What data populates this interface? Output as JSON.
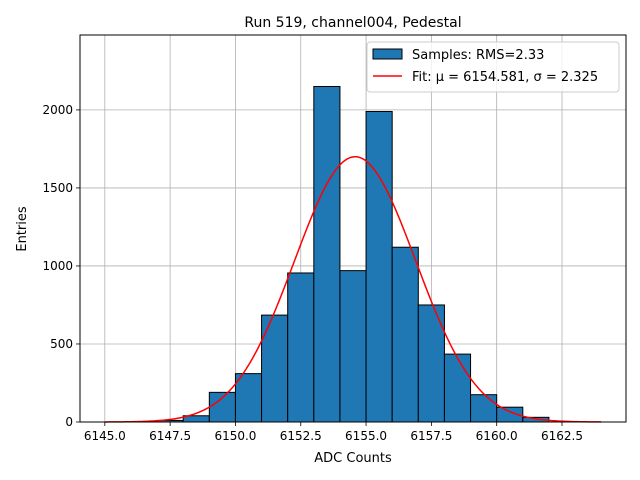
{
  "chart_data": {
    "type": "bar",
    "title": "Run 519, channel004, Pedestal",
    "xlabel": "ADC Counts",
    "ylabel": "Entries",
    "xlim": [
      6144.05,
      6164.95
    ],
    "ylim": [
      0,
      2480
    ],
    "xticks": [
      6145.0,
      6147.5,
      6150.0,
      6152.5,
      6155.0,
      6157.5,
      6160.0,
      6162.5
    ],
    "xtick_labels": [
      "6145.0",
      "6147.5",
      "6150.0",
      "6152.5",
      "6155.0",
      "6157.5",
      "6160.0",
      "6162.5"
    ],
    "yticks": [
      0,
      500,
      1000,
      1500,
      2000
    ],
    "ytick_labels": [
      "0",
      "500",
      "1000",
      "1500",
      "2000"
    ],
    "grid": true,
    "legend_position": "top-right",
    "histogram": {
      "name": "Samples: RMS=2.33",
      "bin_width": 1,
      "bin_lefts": [
        6145,
        6146,
        6147,
        6148,
        6149,
        6150,
        6151,
        6152,
        6153,
        6154,
        6155,
        6156,
        6157,
        6158,
        6159,
        6160,
        6161,
        6162,
        6163
      ],
      "counts": [
        0,
        2,
        10,
        40,
        190,
        310,
        685,
        955,
        2150,
        970,
        1990,
        1120,
        750,
        435,
        175,
        95,
        30,
        0,
        0
      ],
      "color": "#1f77b4",
      "edgecolor": "#000000"
    },
    "fit": {
      "name": "Fit: μ = 6154.581, σ = 2.325",
      "mu": 6154.581,
      "sigma": 2.325,
      "amplitude": 1700,
      "x_range": [
        6145,
        6164
      ],
      "color": "#ff0000"
    }
  }
}
